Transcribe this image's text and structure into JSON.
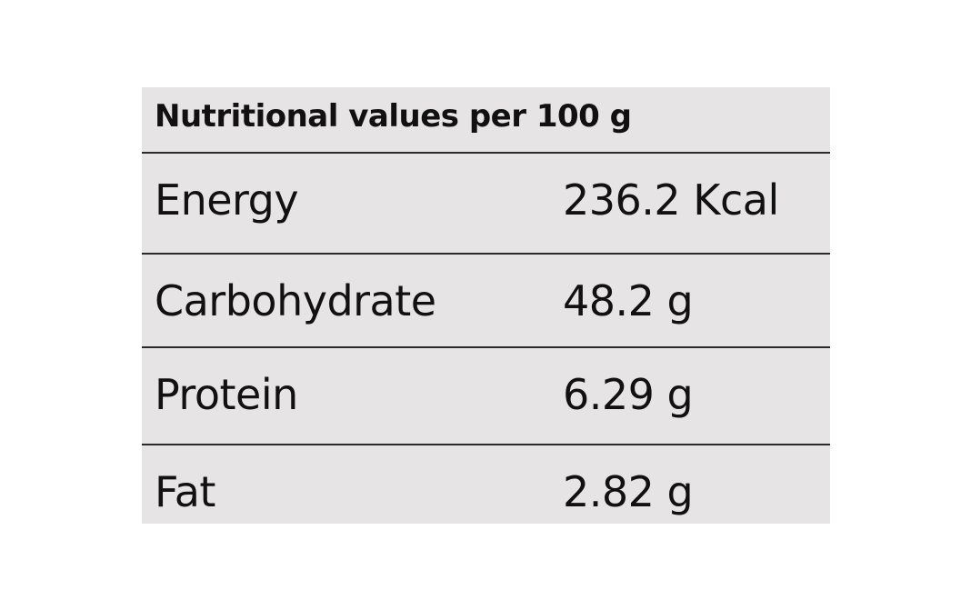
{
  "table": {
    "title": "Nutritional values per 100 g",
    "rows": [
      {
        "name": "Energy",
        "value": "236.2 Kcal"
      },
      {
        "name": "Carbohydrate",
        "value": "48.2 g"
      },
      {
        "name": "Protein",
        "value": "6.29 g"
      },
      {
        "name": "Fat",
        "value": "2.82 g"
      }
    ]
  },
  "colors": {
    "background": "#e6e4e5",
    "text": "#111111",
    "rule": "#2a2a2a"
  }
}
